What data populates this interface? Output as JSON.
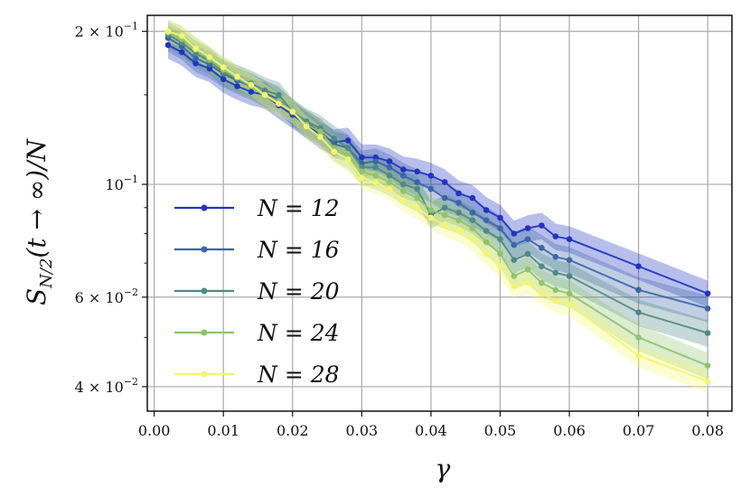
{
  "chart_data": {
    "type": "line",
    "xlabel": "γ",
    "ylabel": "S_{N/2}(t → ∞)/N",
    "xlim": [
      -0.001,
      0.0835
    ],
    "ylim": [
      0.0358,
      0.215
    ],
    "yscale": "log",
    "grid": true,
    "legend_position": "lower-left",
    "x_ticks": [
      {
        "value": 0.0,
        "label": "0.00"
      },
      {
        "value": 0.01,
        "label": "0.01"
      },
      {
        "value": 0.02,
        "label": "0.02"
      },
      {
        "value": 0.03,
        "label": "0.03"
      },
      {
        "value": 0.04,
        "label": "0.04"
      },
      {
        "value": 0.05,
        "label": "0.05"
      },
      {
        "value": 0.06,
        "label": "0.06"
      },
      {
        "value": 0.07,
        "label": "0.07"
      },
      {
        "value": 0.08,
        "label": "0.08"
      }
    ],
    "y_ticks": [
      {
        "value": 0.2,
        "mantissa": "2 × 10",
        "exp": "−1"
      },
      {
        "value": 0.1,
        "mantissa": "10",
        "exp": "−1"
      },
      {
        "value": 0.06,
        "mantissa": "6 × 10",
        "exp": "−2"
      },
      {
        "value": 0.04,
        "mantissa": "4 × 10",
        "exp": "−2"
      }
    ],
    "y_minor_ticks": [
      0.05,
      0.07,
      0.08,
      0.09,
      0.15
    ],
    "x": [
      0.002,
      0.004,
      0.006,
      0.008,
      0.01,
      0.012,
      0.014,
      0.016,
      0.018,
      0.02,
      0.022,
      0.024,
      0.026,
      0.028,
      0.03,
      0.032,
      0.034,
      0.036,
      0.038,
      0.04,
      0.042,
      0.044,
      0.046,
      0.048,
      0.05,
      0.052,
      0.054,
      0.056,
      0.058,
      0.06,
      0.07,
      0.08
    ],
    "series": [
      {
        "name": "N = 12",
        "color": "#2035c0",
        "band": 0.06,
        "values": [
          0.188,
          0.182,
          0.173,
          0.169,
          0.161,
          0.156,
          0.152,
          0.15,
          0.143,
          0.137,
          0.131,
          0.125,
          0.121,
          0.122,
          0.113,
          0.113,
          0.111,
          0.107,
          0.106,
          0.104,
          0.101,
          0.096,
          0.094,
          0.089,
          0.086,
          0.08,
          0.082,
          0.083,
          0.079,
          0.078,
          0.069,
          0.061
        ]
      },
      {
        "name": "N = 16",
        "color": "#3a65a8",
        "band": 0.06,
        "values": [
          0.194,
          0.187,
          0.177,
          0.172,
          0.165,
          0.16,
          0.156,
          0.151,
          0.147,
          0.138,
          0.132,
          0.127,
          0.12,
          0.118,
          0.11,
          0.111,
          0.108,
          0.104,
          0.101,
          0.098,
          0.094,
          0.092,
          0.088,
          0.085,
          0.082,
          0.076,
          0.078,
          0.075,
          0.072,
          0.071,
          0.062,
          0.057
        ]
      },
      {
        "name": "N = 20",
        "color": "#4f8a85",
        "band": 0.06,
        "values": [
          0.197,
          0.19,
          0.181,
          0.175,
          0.166,
          0.162,
          0.158,
          0.153,
          0.15,
          0.139,
          0.133,
          0.129,
          0.123,
          0.118,
          0.108,
          0.108,
          0.104,
          0.1,
          0.098,
          0.087,
          0.09,
          0.088,
          0.085,
          0.081,
          0.078,
          0.071,
          0.073,
          0.069,
          0.067,
          0.066,
          0.056,
          0.051
        ]
      },
      {
        "name": "N = 24",
        "color": "#8fc36c",
        "band": 0.06,
        "values": [
          0.199,
          0.193,
          0.184,
          0.176,
          0.168,
          0.162,
          0.156,
          0.149,
          0.146,
          0.139,
          0.131,
          0.127,
          0.118,
          0.114,
          0.106,
          0.104,
          0.101,
          0.097,
          0.094,
          0.089,
          0.087,
          0.085,
          0.082,
          0.077,
          0.073,
          0.066,
          0.068,
          0.064,
          0.062,
          0.061,
          0.05,
          0.044
        ]
      },
      {
        "name": "N = 28",
        "color": "#f3f56c",
        "band": 0.05,
        "values": [
          0.2,
          0.196,
          0.185,
          0.178,
          0.17,
          0.163,
          0.157,
          0.15,
          0.144,
          0.139,
          0.13,
          0.124,
          0.116,
          0.112,
          0.103,
          0.101,
          0.098,
          0.093,
          0.09,
          0.086,
          0.083,
          0.081,
          0.078,
          0.073,
          0.069,
          0.063,
          0.064,
          0.061,
          0.059,
          0.058,
          0.046,
          0.041
        ]
      }
    ]
  }
}
